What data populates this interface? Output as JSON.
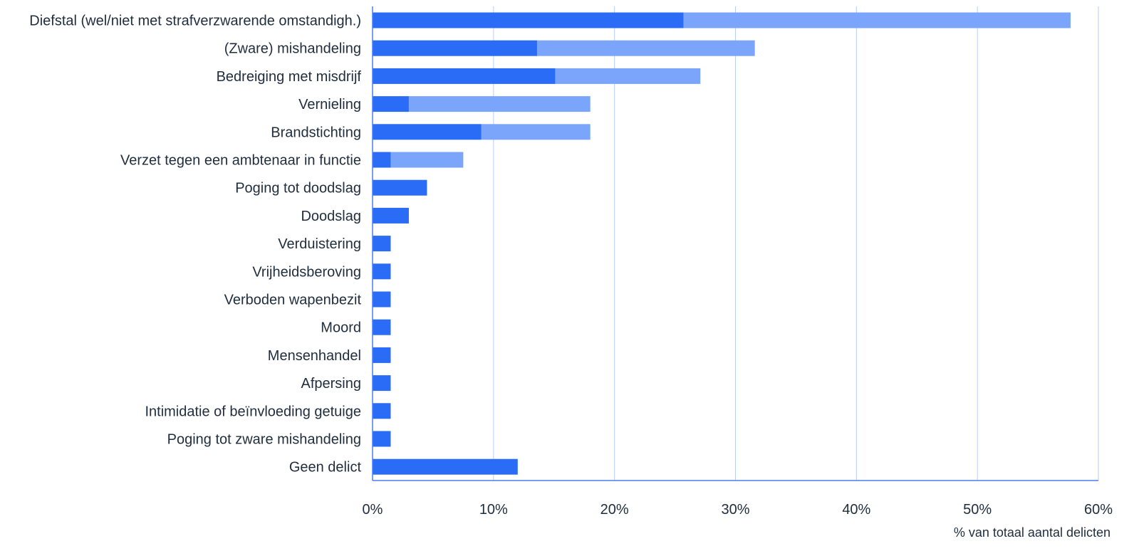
{
  "chart_data": {
    "type": "bar",
    "orientation": "horizontal",
    "stacked": true,
    "title": "",
    "xlabel": "% van totaal aantal delicten",
    "ylabel": "",
    "xlim": [
      0,
      60
    ],
    "x_ticks": [
      0,
      10,
      20,
      30,
      40,
      50,
      60
    ],
    "x_tick_labels": [
      "0%",
      "10%",
      "20%",
      "30%",
      "40%",
      "50%",
      "60%"
    ],
    "grid": "vertical",
    "legend": "none",
    "categories": [
      "Diefstal (wel/niet met strafverzwarende omstandigh.)",
      "(Zware) mishandeling",
      "Bedreiging met misdrijf",
      "Vernieling",
      "Brandstichting",
      "Verzet tegen een ambtenaar in functie",
      "Poging tot doodslag",
      "Doodslag",
      "Verduistering",
      "Vrijheidsberoving",
      "Verboden wapenbezit",
      "Moord",
      "Mensenhandel",
      "Afpersing",
      "Intimidatie of beïnvloeding getuige",
      "Poging tot zware mishandeling",
      "Geen delict"
    ],
    "series": [
      {
        "values": [
          25.7,
          13.6,
          15.1,
          3.0,
          9.0,
          1.5,
          4.5,
          3.0,
          1.5,
          1.5,
          1.5,
          1.5,
          1.5,
          1.5,
          1.5,
          1.5,
          12.0
        ]
      },
      {
        "values": [
          32.0,
          18.0,
          12.0,
          15.0,
          9.0,
          6.0,
          0,
          0,
          0,
          0,
          0,
          0,
          0,
          0,
          0,
          0,
          0
        ]
      }
    ],
    "colors": [
      "#2b6cf6",
      "#7aa5fb"
    ],
    "grid_color": "#b9cdf7",
    "axis_color": "#4a7ff0"
  }
}
